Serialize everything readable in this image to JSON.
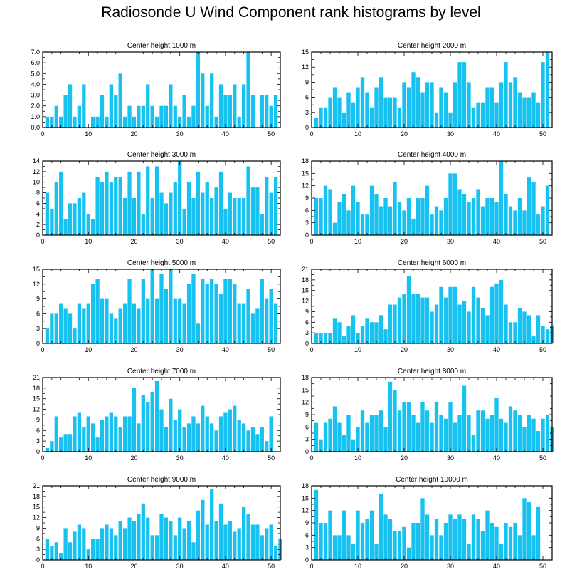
{
  "title": "Radiosonde U Wind Component rank histograms by level",
  "bar_color": "#17C1F0",
  "chart_data": [
    {
      "type": "bar",
      "title": "Center height 1000 m",
      "xlim": [
        0,
        52
      ],
      "ylim": [
        0,
        7
      ],
      "xticks": [
        0,
        10,
        20,
        30,
        40,
        50
      ],
      "yticks": [
        "0.0",
        "1.0",
        "2.0",
        "3.0",
        "4.0",
        "5.0",
        "6.0",
        "7.0"
      ],
      "values": [
        1,
        1,
        2,
        1,
        3,
        4,
        1,
        2,
        4,
        0,
        1,
        1,
        3,
        1,
        4,
        3,
        5,
        1,
        2,
        1,
        2,
        2,
        4,
        2,
        1,
        2,
        2,
        4,
        2,
        1,
        3,
        1,
        2,
        7,
        5,
        2,
        5,
        1,
        4,
        3,
        3,
        4,
        1,
        4,
        7,
        3,
        0,
        3,
        3,
        2,
        3
      ]
    },
    {
      "type": "bar",
      "title": "Center height 2000 m",
      "xlim": [
        0,
        52
      ],
      "ylim": [
        0,
        15
      ],
      "xticks": [
        0,
        10,
        20,
        30,
        40,
        50
      ],
      "yticks": [
        "0",
        "3",
        "6",
        "9",
        "12",
        "15"
      ],
      "values": [
        2,
        4,
        4,
        6,
        8,
        6,
        3,
        7,
        5,
        8,
        10,
        7,
        4,
        8,
        10,
        6,
        6,
        6,
        4,
        9,
        8,
        11,
        10,
        7,
        9,
        9,
        3,
        8,
        7,
        3,
        9,
        13,
        13,
        9,
        4,
        5,
        5,
        8,
        8,
        5,
        9,
        13,
        9,
        10,
        7,
        6,
        6,
        7,
        5,
        13,
        15
      ]
    },
    {
      "type": "bar",
      "title": "Center height 3000 m",
      "xlim": [
        0,
        52
      ],
      "ylim": [
        0,
        14
      ],
      "xticks": [
        0,
        10,
        20,
        30,
        40,
        50
      ],
      "yticks": [
        "0",
        "2",
        "4",
        "6",
        "8",
        "10",
        "12",
        "14"
      ],
      "values": [
        8,
        5,
        10,
        12,
        3,
        6,
        6,
        7,
        8,
        4,
        3,
        11,
        10,
        12,
        10,
        11,
        11,
        7,
        12,
        7,
        12,
        4,
        13,
        7,
        13,
        8,
        6,
        8,
        10,
        14,
        5,
        10,
        7,
        12,
        8,
        10,
        7,
        9,
        12,
        5,
        8,
        7,
        7,
        7,
        13,
        9,
        9,
        4,
        11,
        8,
        11
      ]
    },
    {
      "type": "bar",
      "title": "Center height 4000 m",
      "xlim": [
        0,
        52
      ],
      "ylim": [
        0,
        18
      ],
      "xticks": [
        0,
        10,
        20,
        30,
        40,
        50
      ],
      "yticks": [
        "0",
        "3",
        "6",
        "9",
        "12",
        "15",
        "18"
      ],
      "values": [
        9,
        9,
        12,
        11,
        3,
        8,
        10,
        6,
        12,
        8,
        5,
        5,
        12,
        10,
        7,
        9,
        7,
        13,
        8,
        6,
        9,
        4,
        9,
        9,
        12,
        5,
        7,
        6,
        9,
        15,
        15,
        11,
        10,
        8,
        9,
        11,
        7,
        9,
        9,
        8,
        18,
        10,
        7,
        6,
        9,
        6,
        14,
        13,
        5,
        7,
        12
      ]
    },
    {
      "type": "bar",
      "title": "Center height 5000 m",
      "xlim": [
        0,
        52
      ],
      "ylim": [
        0,
        15
      ],
      "xticks": [
        0,
        10,
        20,
        30,
        40,
        50
      ],
      "yticks": [
        "0",
        "3",
        "6",
        "9",
        "12",
        "15"
      ],
      "values": [
        3,
        6,
        6,
        8,
        7,
        6,
        3,
        8,
        7,
        8,
        12,
        13,
        9,
        9,
        6,
        5,
        7,
        8,
        13,
        8,
        7,
        13,
        9,
        15,
        9,
        14,
        11,
        15,
        9,
        9,
        8,
        12,
        14,
        4,
        13,
        12,
        13,
        12,
        10,
        13,
        13,
        12,
        8,
        8,
        11,
        6,
        7,
        13,
        9,
        11,
        8
      ]
    },
    {
      "type": "bar",
      "title": "Center height 6000 m",
      "xlim": [
        0,
        52
      ],
      "ylim": [
        0,
        21
      ],
      "xticks": [
        0,
        10,
        20,
        30,
        40,
        50
      ],
      "yticks": [
        "0",
        "3",
        "6",
        "9",
        "12",
        "15",
        "18",
        "21"
      ],
      "values": [
        3,
        3,
        3,
        3,
        7,
        6,
        2,
        5,
        8,
        3,
        5,
        7,
        6,
        6,
        8,
        4,
        11,
        11,
        13,
        14,
        19,
        14,
        14,
        13,
        13,
        9,
        11,
        16,
        13,
        16,
        16,
        11,
        12,
        9,
        16,
        13,
        10,
        8,
        16,
        17,
        18,
        11,
        6,
        6,
        10,
        9,
        8,
        2,
        8,
        5,
        4,
        5
      ]
    },
    {
      "type": "bar",
      "title": "Center height 7000 m",
      "xlim": [
        0,
        52
      ],
      "ylim": [
        0,
        21
      ],
      "xticks": [
        0,
        10,
        20,
        30,
        40,
        50
      ],
      "yticks": [
        "0",
        "3",
        "6",
        "9",
        "12",
        "15",
        "18",
        "21"
      ],
      "values": [
        1,
        3,
        10,
        4,
        5,
        5,
        10,
        11,
        7,
        10,
        8,
        4,
        9,
        10,
        11,
        10,
        7,
        10,
        10,
        18,
        8,
        16,
        14,
        17,
        20,
        12,
        7,
        15,
        9,
        12,
        7,
        8,
        10,
        8,
        13,
        10,
        8,
        6,
        10,
        11,
        12,
        13,
        9,
        8,
        6,
        7,
        5,
        7,
        3,
        10
      ]
    },
    {
      "type": "bar",
      "title": "Center height 8000 m",
      "xlim": [
        0,
        52
      ],
      "ylim": [
        0,
        18
      ],
      "xticks": [
        0,
        10,
        20,
        30,
        40,
        50
      ],
      "yticks": [
        "0",
        "3",
        "6",
        "9",
        "12",
        "15",
        "18"
      ],
      "values": [
        7,
        3,
        7,
        8,
        11,
        7,
        4,
        9,
        3,
        6,
        10,
        7,
        9,
        9,
        10,
        6,
        17,
        15,
        10,
        12,
        12,
        9,
        7,
        12,
        10,
        7,
        12,
        9,
        8,
        12,
        7,
        9,
        16,
        9,
        4,
        10,
        10,
        8,
        9,
        13,
        8,
        7,
        11,
        10,
        9,
        6,
        9,
        8,
        5,
        8,
        9,
        6
      ]
    },
    {
      "type": "bar",
      "title": "Center height 9000 m",
      "xlim": [
        0,
        52
      ],
      "ylim": [
        0,
        21
      ],
      "xticks": [
        0,
        10,
        20,
        30,
        40,
        50
      ],
      "yticks": [
        "0",
        "3",
        "6",
        "9",
        "12",
        "15",
        "18",
        "21"
      ],
      "values": [
        6,
        4,
        5,
        2,
        9,
        5,
        8,
        10,
        9,
        3,
        6,
        6,
        9,
        10,
        9,
        7,
        11,
        9,
        12,
        11,
        13,
        16,
        12,
        7,
        7,
        13,
        12,
        11,
        7,
        12,
        9,
        11,
        5,
        14,
        17,
        10,
        20,
        11,
        16,
        10,
        11,
        8,
        9,
        15,
        13,
        10,
        10,
        7,
        9,
        10,
        4,
        6
      ]
    },
    {
      "type": "bar",
      "title": "Center height 10000 m",
      "xlim": [
        0,
        52
      ],
      "ylim": [
        0,
        18
      ],
      "xticks": [
        0,
        10,
        20,
        30,
        40,
        50
      ],
      "yticks": [
        "0",
        "3",
        "6",
        "9",
        "12",
        "15",
        "18"
      ],
      "values": [
        17,
        9,
        9,
        12,
        6,
        6,
        12,
        6,
        4,
        12,
        9,
        10,
        12,
        4,
        16,
        11,
        10,
        7,
        7,
        8,
        3,
        9,
        9,
        15,
        11,
        6,
        10,
        6,
        9,
        11,
        10,
        11,
        10,
        4,
        11,
        10,
        7,
        12,
        9,
        8,
        4,
        9,
        8,
        9,
        6,
        15,
        14,
        6,
        13
      ]
    }
  ]
}
